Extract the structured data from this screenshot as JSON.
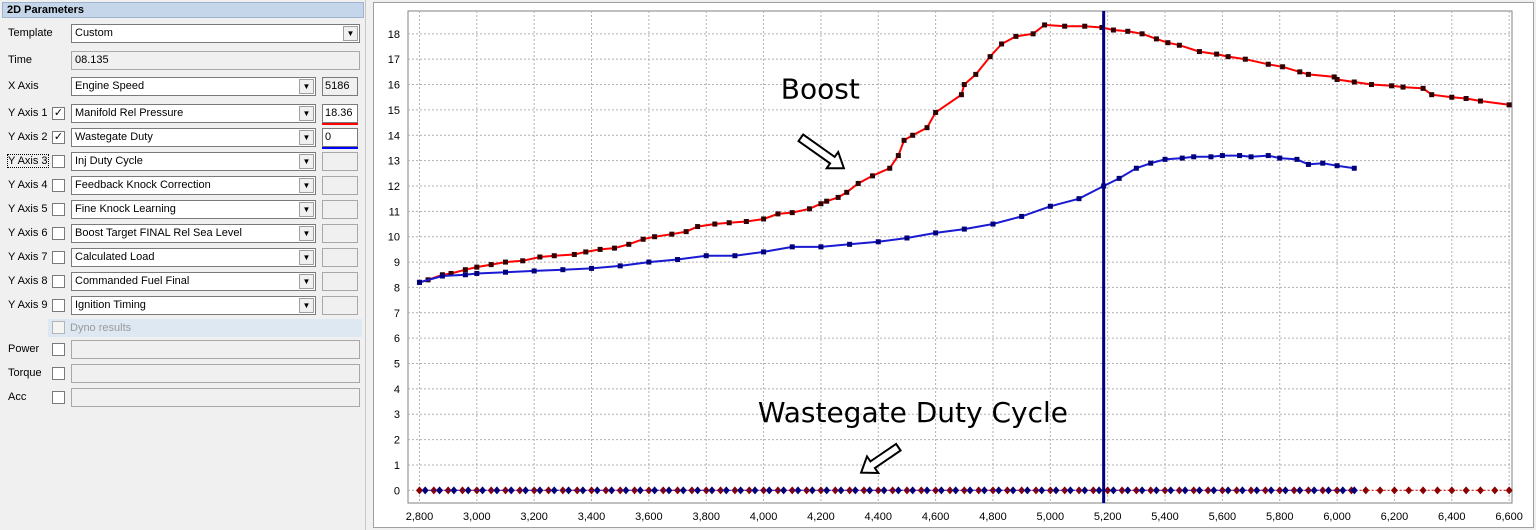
{
  "panel": {
    "title": "2D Parameters",
    "template": {
      "label": "Template",
      "value": "Custom"
    },
    "time": {
      "label": "Time",
      "value": "08.135"
    },
    "x_axis": {
      "label": "X Axis",
      "value": "Engine Speed",
      "reading": "5186"
    },
    "y_axes": [
      {
        "label": "Y Axis 1",
        "checked": true,
        "value": "Manifold Rel Pressure",
        "reading": "18.36",
        "color": "#ff0000"
      },
      {
        "label": "Y Axis 2",
        "checked": true,
        "value": "Wastegate Duty",
        "reading": "0",
        "color": "#0000ff"
      },
      {
        "label": "Y Axis 3",
        "checked": false,
        "value": "Inj Duty Cycle",
        "reading": ""
      },
      {
        "label": "Y Axis 4",
        "checked": false,
        "value": "Feedback Knock Correction",
        "reading": ""
      },
      {
        "label": "Y Axis 5",
        "checked": false,
        "value": "Fine Knock Learning",
        "reading": ""
      },
      {
        "label": "Y Axis 6",
        "checked": false,
        "value": "Boost Target FINAL Rel Sea Level",
        "reading": ""
      },
      {
        "label": "Y Axis 7",
        "checked": false,
        "value": "Calculated Load",
        "reading": ""
      },
      {
        "label": "Y Axis 8",
        "checked": false,
        "value": "Commanded Fuel Final",
        "reading": ""
      },
      {
        "label": "Y Axis 9",
        "checked": false,
        "value": "Ignition Timing",
        "reading": ""
      }
    ],
    "dyno_label": "Dyno results",
    "dyno_rows": [
      {
        "label": "Power"
      },
      {
        "label": "Torque"
      },
      {
        "label": "Acc"
      }
    ]
  },
  "chart_data": {
    "type": "line",
    "cursor_x": 5186,
    "grid": true,
    "xlim": [
      2760,
      6610
    ],
    "ylim": [
      -0.5,
      18.9
    ],
    "x_ticks": [
      2800,
      3000,
      3200,
      3400,
      3600,
      3800,
      4000,
      4200,
      4400,
      4600,
      4800,
      5000,
      5200,
      5400,
      5600,
      5800,
      6000,
      6200,
      6400,
      6600
    ],
    "x_tick_labels": [
      "2,800",
      "3,000",
      "3,200",
      "3,400",
      "3,600",
      "3,800",
      "4,000",
      "4,200",
      "4,400",
      "4,600",
      "4,800",
      "5,000",
      "5,200",
      "5,400",
      "5,600",
      "5,800",
      "6,000",
      "6,200",
      "6,400",
      "6,600"
    ],
    "y_ticks": [
      0,
      1,
      2,
      3,
      4,
      5,
      6,
      7,
      8,
      9,
      10,
      11,
      12,
      13,
      14,
      15,
      16,
      17,
      18
    ],
    "y_tick_labels": [
      "0",
      "1",
      "2",
      "3",
      "4",
      "5",
      "6",
      "7",
      "8",
      "9",
      "10",
      "11",
      "12",
      "13",
      "14",
      "15",
      "16",
      "17",
      "18"
    ],
    "annotations": [
      "Boost",
      "Wastegate Duty Cycle"
    ],
    "series": [
      {
        "color": "#ff0000",
        "marker_color": "#300000",
        "x": [
          2800,
          2830,
          2880,
          2910,
          2960,
          3000,
          3050,
          3100,
          3160,
          3220,
          3270,
          3340,
          3380,
          3430,
          3480,
          3530,
          3580,
          3620,
          3680,
          3730,
          3770,
          3830,
          3880,
          3940,
          4000,
          4050,
          4100,
          4160,
          4200,
          4220,
          4260,
          4290,
          4330,
          4380,
          4440,
          4470,
          4490,
          4520,
          4570,
          4600,
          4690,
          4700,
          4740,
          4790,
          4830,
          4880,
          4940,
          4980,
          5050,
          5120,
          5180,
          5220,
          5270,
          5320,
          5370,
          5410,
          5450,
          5520,
          5580,
          5620,
          5680,
          5760,
          5810,
          5870,
          5900,
          5990,
          6000,
          6060,
          6120,
          6190,
          6230,
          6300,
          6330,
          6400,
          6450,
          6500,
          6600
        ],
        "y": [
          8.2,
          8.3,
          8.5,
          8.55,
          8.7,
          8.8,
          8.9,
          9.0,
          9.05,
          9.2,
          9.25,
          9.3,
          9.4,
          9.5,
          9.55,
          9.7,
          9.9,
          10.0,
          10.1,
          10.2,
          10.4,
          10.5,
          10.55,
          10.6,
          10.7,
          10.9,
          10.95,
          11.1,
          11.3,
          11.4,
          11.55,
          11.75,
          12.1,
          12.4,
          12.7,
          13.2,
          13.8,
          14.0,
          14.3,
          14.9,
          15.6,
          16.0,
          16.4,
          17.1,
          17.6,
          17.9,
          18.0,
          18.35,
          18.3,
          18.3,
          18.25,
          18.15,
          18.1,
          18.0,
          17.8,
          17.65,
          17.55,
          17.3,
          17.2,
          17.1,
          17.0,
          16.8,
          16.7,
          16.5,
          16.4,
          16.3,
          16.2,
          16.1,
          16.0,
          15.95,
          15.9,
          15.85,
          15.6,
          15.5,
          15.45,
          15.35,
          15.2
        ]
      },
      {
        "color": "#1a1ad2",
        "marker_color": "#00007a",
        "x": [
          2800,
          2880,
          2960,
          3000,
          3100,
          3200,
          3300,
          3400,
          3500,
          3600,
          3700,
          3800,
          3900,
          4000,
          4100,
          4200,
          4300,
          4400,
          4500,
          4600,
          4700,
          4800,
          4900,
          5000,
          5100,
          5186,
          5240,
          5300,
          5350,
          5400,
          5460,
          5500,
          5560,
          5600,
          5660,
          5700,
          5760,
          5800,
          5860,
          5900,
          5950,
          6000,
          6060
        ],
        "y": [
          8.2,
          8.45,
          8.5,
          8.55,
          8.6,
          8.65,
          8.7,
          8.75,
          8.85,
          9.0,
          9.1,
          9.25,
          9.25,
          9.4,
          9.6,
          9.6,
          9.7,
          9.8,
          9.95,
          10.15,
          10.3,
          10.5,
          10.8,
          11.2,
          11.5,
          12.0,
          12.3,
          12.7,
          12.9,
          13.05,
          13.1,
          13.15,
          13.15,
          13.2,
          13.2,
          13.15,
          13.2,
          13.1,
          13.05,
          12.85,
          12.9,
          12.8,
          12.7
        ]
      },
      {
        "color": "#ff0000",
        "marker_color": "#8b0000",
        "marker": "diamond",
        "x": [
          2800,
          2850,
          2900,
          2950,
          3000,
          3050,
          3100,
          3150,
          3200,
          3250,
          3300,
          3350,
          3400,
          3450,
          3500,
          3550,
          3600,
          3650,
          3700,
          3750,
          3800,
          3850,
          3900,
          3950,
          4000,
          4050,
          4100,
          4150,
          4200,
          4250,
          4300,
          4350,
          4400,
          4450,
          4500,
          4550,
          4600,
          4650,
          4700,
          4750,
          4800,
          4850,
          4900,
          4950,
          5000,
          5050,
          5100,
          5150,
          5200,
          5250,
          5300,
          5350,
          5400,
          5450,
          5500,
          5550,
          5600,
          5650,
          5700,
          5750,
          5800,
          5850,
          5900,
          5950,
          6000,
          6050,
          6100,
          6150,
          6200,
          6250,
          6300,
          6350,
          6400,
          6450,
          6500,
          6550,
          6600
        ],
        "y": [
          0,
          0,
          0,
          0,
          0,
          0,
          0,
          0,
          0,
          0,
          0,
          0,
          0,
          0,
          0,
          0,
          0,
          0,
          0,
          0,
          0,
          0,
          0,
          0,
          0,
          0,
          0,
          0,
          0,
          0,
          0,
          0,
          0,
          0,
          0,
          0,
          0,
          0,
          0,
          0,
          0,
          0,
          0,
          0,
          0,
          0,
          0,
          0,
          0,
          0,
          0,
          0,
          0,
          0,
          0,
          0,
          0,
          0,
          0,
          0,
          0,
          0,
          0,
          0,
          0,
          0,
          0,
          0,
          0,
          0,
          0,
          0,
          0,
          0,
          0,
          0,
          0
        ]
      },
      {
        "color": "#0000ff",
        "marker_color": "#00007a",
        "marker": "diamond",
        "x": [
          2820,
          2870,
          2920,
          2970,
          3020,
          3070,
          3120,
          3170,
          3220,
          3270,
          3320,
          3370,
          3420,
          3470,
          3520,
          3570,
          3620,
          3670,
          3720,
          3770,
          3820,
          3870,
          3920,
          3970,
          4020,
          4070,
          4120,
          4170,
          4220,
          4270,
          4320,
          4370,
          4420,
          4470,
          4520,
          4570,
          4620,
          4670,
          4720,
          4770,
          4820,
          4870,
          4920,
          4970,
          5020,
          5070,
          5120,
          5170,
          5220,
          5270,
          5320,
          5370,
          5420,
          5470,
          5520,
          5570,
          5620,
          5670,
          5720,
          5770,
          5820,
          5870,
          5920,
          5970,
          6020,
          6060
        ],
        "y": [
          0,
          0,
          0,
          0,
          0,
          0,
          0,
          0,
          0,
          0,
          0,
          0,
          0,
          0,
          0,
          0,
          0,
          0,
          0,
          0,
          0,
          0,
          0,
          0,
          0,
          0,
          0,
          0,
          0,
          0,
          0,
          0,
          0,
          0,
          0,
          0,
          0,
          0,
          0,
          0,
          0,
          0,
          0,
          0,
          0,
          0,
          0,
          0,
          0,
          0,
          0,
          0,
          0,
          0,
          0,
          0,
          0,
          0,
          0,
          0,
          0,
          0,
          0,
          0,
          0,
          0
        ]
      }
    ]
  }
}
